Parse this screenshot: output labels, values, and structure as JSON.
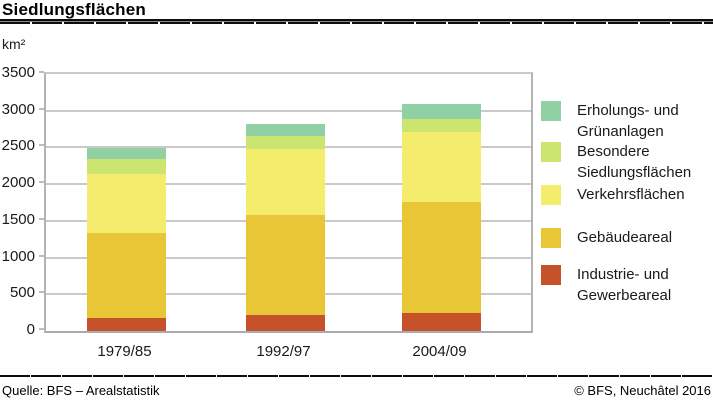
{
  "header": {
    "title": "Siedlungsflächen"
  },
  "axis": {
    "unit_label": "km²"
  },
  "footer": {
    "source": "Quelle: BFS – Arealstatistik",
    "copyright": "© BFS, Neuchâtel 2016"
  },
  "colors": {
    "grid": "#c9c9c9",
    "axis": "#b3b3b3",
    "text": "#1a1a1a",
    "rule": "#0d0d0d"
  },
  "chart_data": {
    "type": "bar",
    "stacked": true,
    "title": "Siedlungsflächen",
    "ylabel": "km²",
    "xlabel": "",
    "categories": [
      "1979/85",
      "1992/97",
      "2004/09"
    ],
    "series": [
      {
        "name": "Industrie- und Gewerbeareal",
        "color": "#c5522b",
        "values": [
          180,
          220,
          240
        ]
      },
      {
        "name": "Gebäudeareal",
        "color": "#e9c636",
        "values": [
          1160,
          1360,
          1520
        ]
      },
      {
        "name": "Verkehrsflächen",
        "color": "#f3ec6c",
        "values": [
          805,
          905,
          955
        ]
      },
      {
        "name": "Besondere Siedlungsflächen",
        "color": "#cce571",
        "values": [
          200,
          165,
          175
        ]
      },
      {
        "name": "Erholungs- und Grünanlagen",
        "color": "#90d0a4",
        "values": [
          145,
          170,
          200
        ]
      }
    ],
    "totals": [
      2490,
      2820,
      3090
    ],
    "ylim": [
      0,
      3500
    ],
    "yticks": [
      0,
      500,
      1000,
      1500,
      2000,
      2500,
      3000,
      3500
    ],
    "grid": true,
    "legend_position": "right",
    "legend_order": "top-segment-first"
  }
}
